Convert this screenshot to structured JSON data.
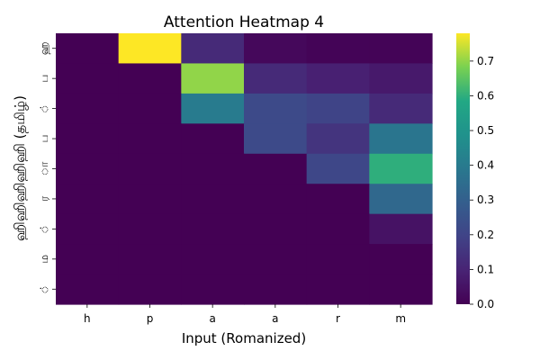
{
  "chart_data": {
    "type": "heatmap",
    "title": "Attention Heatmap 4",
    "xlabel": "Input (Romanized)",
    "ylabel": "ஹிஹிஹிஹிஹி (தமிழ்)",
    "x_tick_labels": [
      "h",
      "p",
      "a",
      "a",
      "r",
      "m"
    ],
    "y_tick_labels": [
      "ஹ",
      "ப",
      "்",
      "ப",
      "ா",
      "ர",
      "்",
      "ம",
      "்"
    ],
    "values": [
      [
        0.0,
        0.78,
        0.12,
        0.02,
        0.01,
        0.01
      ],
      [
        0.0,
        0.0,
        0.7,
        0.12,
        0.09,
        0.07
      ],
      [
        0.0,
        0.0,
        0.4,
        0.22,
        0.2,
        0.12
      ],
      [
        0.0,
        0.0,
        0.0,
        0.22,
        0.15,
        0.38
      ],
      [
        0.0,
        0.0,
        0.0,
        0.0,
        0.21,
        0.6
      ],
      [
        0.0,
        0.0,
        0.0,
        0.0,
        0.0,
        0.33
      ],
      [
        0.0,
        0.0,
        0.0,
        0.0,
        0.0,
        0.05
      ],
      [
        0.0,
        0.0,
        0.0,
        0.0,
        0.0,
        0.0
      ],
      [
        0.0,
        0.0,
        0.0,
        0.0,
        0.0,
        0.0
      ]
    ],
    "colormap": "viridis",
    "colorbar_range": [
      0.0,
      0.78
    ],
    "colorbar_ticks": [
      "0.0",
      "0.1",
      "0.2",
      "0.3",
      "0.4",
      "0.5",
      "0.6",
      "0.7"
    ]
  }
}
